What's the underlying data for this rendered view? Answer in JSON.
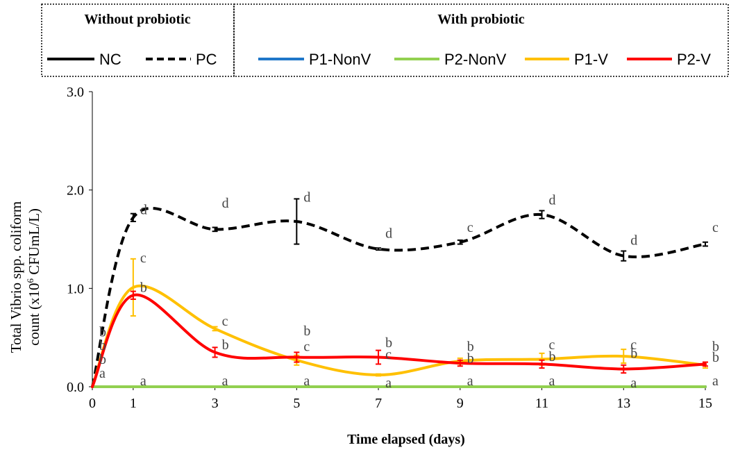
{
  "chart_data": {
    "type": "line",
    "title": "",
    "xlabel": "Time elapsed (days)",
    "ylabel_line1": "Total Vibrio spp. coliform",
    "ylabel_line2_prefix": "count (x10",
    "ylabel_line2_sup": "6",
    "ylabel_line2_suffix": " CFUmL/L)",
    "ylabel": "Total Vibrio spp. coliform count (x10^6 CFUmL/L)",
    "x_ticks": [
      0,
      1,
      3,
      5,
      7,
      9,
      11,
      13,
      15
    ],
    "y_ticks": [
      "0.0",
      "1.0",
      "2.0",
      "3.0"
    ],
    "ylim": [
      0,
      3
    ],
    "grid": false,
    "legend": {
      "placement": "top",
      "group_without": "Without probiotic",
      "group_with": "With probiotic"
    },
    "series": [
      {
        "name": "NC",
        "color": "#000000",
        "dash": "solid",
        "group": "without",
        "x": [
          0,
          1,
          3,
          5,
          7,
          9,
          11,
          13,
          15
        ],
        "values": [
          0,
          0,
          0,
          0,
          0,
          0,
          0,
          0,
          0
        ],
        "errors": [
          0,
          0,
          0,
          0,
          0,
          0,
          0,
          0,
          0
        ]
      },
      {
        "name": "PC",
        "color": "#000000",
        "dash": "dashed",
        "group": "without",
        "x": [
          0,
          1,
          3,
          5,
          7,
          9,
          11,
          13,
          15
        ],
        "values": [
          0,
          1.72,
          1.6,
          1.68,
          1.4,
          1.47,
          1.75,
          1.33,
          1.45
        ],
        "errors": [
          0,
          0.04,
          0.02,
          0.23,
          0.01,
          0.02,
          0.04,
          0.05,
          0.02
        ]
      },
      {
        "name": "P1-NonV",
        "color": "#1f77c9",
        "dash": "solid",
        "group": "with",
        "x": [
          0,
          1,
          3,
          5,
          7,
          9,
          11,
          13,
          15
        ],
        "values": [
          0,
          0,
          0,
          0,
          0,
          0,
          0,
          0,
          0
        ],
        "errors": [
          0,
          0,
          0,
          0,
          0,
          0,
          0,
          0,
          0
        ]
      },
      {
        "name": "P2-NonV",
        "color": "#92d050",
        "dash": "solid",
        "group": "with",
        "x": [
          0,
          1,
          3,
          5,
          7,
          9,
          11,
          13,
          15
        ],
        "values": [
          0,
          0,
          0,
          0,
          0,
          0,
          0,
          0,
          0
        ],
        "errors": [
          0,
          0,
          0,
          0,
          0,
          0,
          0,
          0,
          0
        ]
      },
      {
        "name": "P1-V",
        "color": "#ffc000",
        "dash": "solid",
        "group": "with",
        "x": [
          0,
          1,
          3,
          5,
          7,
          9,
          11,
          13,
          15
        ],
        "values": [
          0,
          1.01,
          0.59,
          0.27,
          0.12,
          0.26,
          0.28,
          0.31,
          0.22
        ],
        "errors": [
          0,
          0.29,
          0.02,
          0.05,
          0.01,
          0.03,
          0.06,
          0.07,
          0.03
        ]
      },
      {
        "name": "P2-V",
        "color": "#ff0000",
        "dash": "solid",
        "group": "with",
        "x": [
          0,
          1,
          3,
          5,
          7,
          9,
          11,
          13,
          15
        ],
        "values": [
          0,
          0.93,
          0.35,
          0.3,
          0.3,
          0.24,
          0.23,
          0.18,
          0.23
        ],
        "errors": [
          0,
          0.04,
          0.05,
          0.05,
          0.07,
          0.03,
          0.04,
          0.04,
          0.02
        ]
      }
    ],
    "annotations": [
      {
        "x": 0,
        "y": 0.52,
        "text": "b"
      },
      {
        "x": 0,
        "y": 0.38,
        "text": "b"
      },
      {
        "x": 0,
        "y": 0.24,
        "text": "b"
      },
      {
        "x": 0,
        "y": 0.1,
        "text": "a"
      },
      {
        "x": 1,
        "y": 1.76,
        "text": "d"
      },
      {
        "x": 1,
        "y": 1.27,
        "text": "c"
      },
      {
        "x": 1,
        "y": 0.97,
        "text": "b"
      },
      {
        "x": 1,
        "y": 0.02,
        "text": "a"
      },
      {
        "x": 3,
        "y": 1.83,
        "text": "d"
      },
      {
        "x": 3,
        "y": 0.63,
        "text": "c"
      },
      {
        "x": 3,
        "y": 0.39,
        "text": "b"
      },
      {
        "x": 3,
        "y": 0.02,
        "text": "a"
      },
      {
        "x": 5,
        "y": 1.89,
        "text": "d"
      },
      {
        "x": 5,
        "y": 0.53,
        "text": "b"
      },
      {
        "x": 5,
        "y": 0.37,
        "text": "c"
      },
      {
        "x": 5,
        "y": 0.02,
        "text": "a"
      },
      {
        "x": 7,
        "y": 1.52,
        "text": "d"
      },
      {
        "x": 7,
        "y": 0.41,
        "text": "b"
      },
      {
        "x": 7,
        "y": 0.29,
        "text": "c"
      },
      {
        "x": 7,
        "y": 0.0,
        "text": "a"
      },
      {
        "x": 9,
        "y": 1.58,
        "text": "c"
      },
      {
        "x": 9,
        "y": 0.37,
        "text": "b"
      },
      {
        "x": 9,
        "y": 0.25,
        "text": "b"
      },
      {
        "x": 9,
        "y": 0.02,
        "text": "a"
      },
      {
        "x": 11,
        "y": 1.86,
        "text": "d"
      },
      {
        "x": 11,
        "y": 0.39,
        "text": "c"
      },
      {
        "x": 11,
        "y": 0.27,
        "text": "b"
      },
      {
        "x": 11,
        "y": 0.02,
        "text": "a"
      },
      {
        "x": 13,
        "y": 1.45,
        "text": "d"
      },
      {
        "x": 13,
        "y": 0.39,
        "text": "c"
      },
      {
        "x": 13,
        "y": 0.3,
        "text": "b"
      },
      {
        "x": 13,
        "y": 0.0,
        "text": "a"
      },
      {
        "x": 15,
        "y": 1.58,
        "text": "c"
      },
      {
        "x": 15,
        "y": 0.37,
        "text": "b"
      },
      {
        "x": 15,
        "y": 0.26,
        "text": "b"
      },
      {
        "x": 15,
        "y": 0.02,
        "text": "a"
      }
    ]
  }
}
